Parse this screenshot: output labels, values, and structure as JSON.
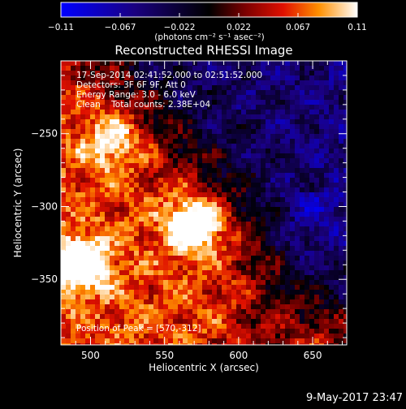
{
  "chart_data": {
    "type": "heatmap",
    "title": "Reconstructed RHESSI Image",
    "xlabel": "Heliocentric X (arcsec)",
    "ylabel": "Heliocentric Y (arcsec)",
    "xlim": [
      480,
      673
    ],
    "ylim": [
      -395,
      -200
    ],
    "xticks": [
      500,
      550,
      600,
      650
    ],
    "yticks": [
      -250,
      -300,
      -350
    ],
    "colorbar": {
      "range": [
        -0.11,
        0.11
      ],
      "ticks": [
        "-0.11",
        "-0.067",
        "-0.022",
        "0.022",
        "0.067",
        "0.11"
      ],
      "units": "(photons cm⁻² s⁻¹ asec⁻²)",
      "colormap": "rhessi-blue-black-red-yellow-white"
    },
    "annotations": [
      "17-Sep-2014 02:41:52.000 to 02:51:52.000",
      "Detectors: 3F 6F 9F, Att 0",
      "Energy Range: 3.0 - 6.0 keV",
      "Clean    Total counts: 2.38E+04"
    ],
    "peak_label": "Position of Peak = [570,-312]",
    "peak": {
      "x": 570,
      "y": -312
    },
    "hotspots": [
      {
        "x": 493,
        "y": -340,
        "value": 0.1
      },
      {
        "x": 570,
        "y": -312,
        "value": 0.11
      },
      {
        "x": 515,
        "y": -255,
        "value": 0.06
      }
    ],
    "grid": false
  },
  "timestamp": "9-May-2017 23:47"
}
